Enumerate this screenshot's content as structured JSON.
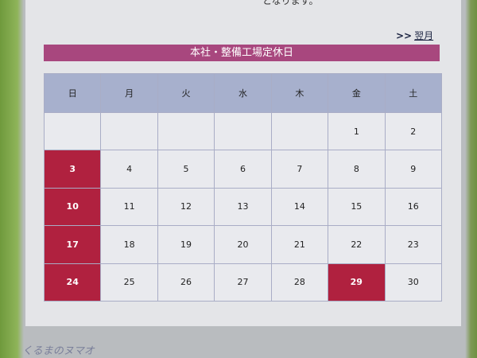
{
  "notice_tail": "となります。",
  "next_month": {
    "icon": "double-chevron-right-icon",
    "label": "翌月"
  },
  "calendar": {
    "title": "本社・整備工場定休日",
    "weekdays": [
      "日",
      "月",
      "火",
      "水",
      "木",
      "金",
      "土"
    ],
    "weeks": [
      [
        "",
        "",
        "",
        "",
        "",
        "1",
        "2"
      ],
      [
        "3",
        "4",
        "5",
        "6",
        "7",
        "8",
        "9"
      ],
      [
        "10",
        "11",
        "12",
        "13",
        "14",
        "15",
        "16"
      ],
      [
        "17",
        "18",
        "19",
        "20",
        "21",
        "22",
        "23"
      ],
      [
        "24",
        "25",
        "26",
        "27",
        "28",
        "29",
        "30"
      ]
    ],
    "holidays": [
      "3",
      "10",
      "17",
      "24",
      "29"
    ],
    "holiday_color": "#b0213f",
    "title_color": "#a8477e"
  },
  "footer_heading": "くるまのヌマオ"
}
